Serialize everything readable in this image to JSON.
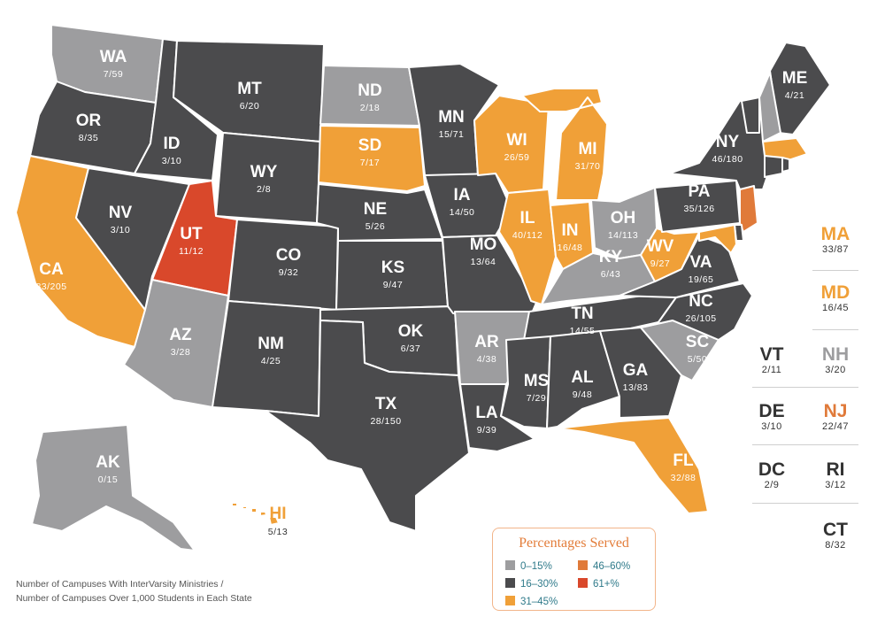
{
  "colors": {
    "light_gray": "#9d9d9f",
    "dark_gray": "#4b4b4d",
    "orange": "#f0a038",
    "red": "#d9482b",
    "text_dark": "#333333",
    "legend_text": "#2f7a8a",
    "legend_title": "#e37d3a"
  },
  "states": {
    "WA": {
      "abbr": "WA",
      "value": "7/59",
      "band": "0–15%"
    },
    "OR": {
      "abbr": "OR",
      "value": "8/35",
      "band": "16–30%"
    },
    "CA": {
      "abbr": "CA",
      "value": "83/205",
      "band": "31–45%"
    },
    "ID": {
      "abbr": "ID",
      "value": "3/10",
      "band": "16–30%"
    },
    "NV": {
      "abbr": "NV",
      "value": "3/10",
      "band": "16–30%"
    },
    "MT": {
      "abbr": "MT",
      "value": "6/20",
      "band": "16–30%"
    },
    "WY": {
      "abbr": "WY",
      "value": "2/8",
      "band": "16–30%"
    },
    "UT": {
      "abbr": "UT",
      "value": "11/12",
      "band": "61+%"
    },
    "AZ": {
      "abbr": "AZ",
      "value": "3/28",
      "band": "0–15%"
    },
    "CO": {
      "abbr": "CO",
      "value": "9/32",
      "band": "16–30%"
    },
    "NM": {
      "abbr": "NM",
      "value": "4/25",
      "band": "16–30%"
    },
    "ND": {
      "abbr": "ND",
      "value": "2/18",
      "band": "0–15%"
    },
    "SD": {
      "abbr": "SD",
      "value": "7/17",
      "band": "31–45%"
    },
    "NE": {
      "abbr": "NE",
      "value": "5/26",
      "band": "16–30%"
    },
    "KS": {
      "abbr": "KS",
      "value": "9/47",
      "band": "16–30%"
    },
    "OK": {
      "abbr": "OK",
      "value": "6/37",
      "band": "16–30%"
    },
    "TX": {
      "abbr": "TX",
      "value": "28/150",
      "band": "16–30%"
    },
    "MN": {
      "abbr": "MN",
      "value": "15/71",
      "band": "16–30%"
    },
    "IA": {
      "abbr": "IA",
      "value": "14/50",
      "band": "16–30%"
    },
    "MO": {
      "abbr": "MO",
      "value": "13/64",
      "band": "16–30%"
    },
    "AR": {
      "abbr": "AR",
      "value": "4/38",
      "band": "0–15%"
    },
    "LA": {
      "abbr": "LA",
      "value": "9/39",
      "band": "16–30%"
    },
    "WI": {
      "abbr": "WI",
      "value": "26/59",
      "band": "31–45%"
    },
    "IL": {
      "abbr": "IL",
      "value": "40/112",
      "band": "31–45%"
    },
    "MI": {
      "abbr": "MI",
      "value": "31/70",
      "band": "31–45%"
    },
    "IN": {
      "abbr": "IN",
      "value": "16/48",
      "band": "31–45%"
    },
    "OH": {
      "abbr": "OH",
      "value": "14/113",
      "band": "0–15%"
    },
    "KY": {
      "abbr": "KY",
      "value": "6/43",
      "band": "0–15%"
    },
    "TN": {
      "abbr": "TN",
      "value": "14/55",
      "band": "16–30%"
    },
    "MS": {
      "abbr": "MS",
      "value": "7/29",
      "band": "16–30%"
    },
    "AL": {
      "abbr": "AL",
      "value": "9/48",
      "band": "16–30%"
    },
    "GA": {
      "abbr": "GA",
      "value": "13/83",
      "band": "16–30%"
    },
    "FL": {
      "abbr": "FL",
      "value": "32/88",
      "band": "31–45%"
    },
    "SC": {
      "abbr": "SC",
      "value": "5/50",
      "band": "0–15%"
    },
    "NC": {
      "abbr": "NC",
      "value": "26/105",
      "band": "16–30%"
    },
    "VA": {
      "abbr": "VA",
      "value": "19/65",
      "band": "16–30%"
    },
    "WV": {
      "abbr": "WV",
      "value": "9/27",
      "band": "31–45%"
    },
    "PA": {
      "abbr": "PA",
      "value": "35/126",
      "band": "16–30%"
    },
    "NY": {
      "abbr": "NY",
      "value": "46/180",
      "band": "16–30%"
    },
    "ME": {
      "abbr": "ME",
      "value": "4/21",
      "band": "16–30%"
    },
    "AK": {
      "abbr": "AK",
      "value": "0/15",
      "band": "0–15%"
    },
    "HI": {
      "abbr": "HI",
      "value": "5/13",
      "band": "31–45%"
    },
    "MA": {
      "abbr": "MA",
      "value": "33/87",
      "band": "31–45%"
    },
    "MD": {
      "abbr": "MD",
      "value": "16/45",
      "band": "31–45%"
    },
    "VT": {
      "abbr": "VT",
      "value": "2/11",
      "band": "16–30%"
    },
    "NH": {
      "abbr": "NH",
      "value": "3/20",
      "band": "0–15%"
    },
    "DE": {
      "abbr": "DE",
      "value": "3/10",
      "band": "16–30%"
    },
    "NJ": {
      "abbr": "NJ",
      "value": "22/47",
      "band": "46–60%"
    },
    "DC": {
      "abbr": "DC",
      "value": "2/9",
      "band": "16–30%"
    },
    "RI": {
      "abbr": "RI",
      "value": "3/12",
      "band": "16–30%"
    },
    "CT": {
      "abbr": "CT",
      "value": "8/32",
      "band": "16–30%"
    }
  },
  "legend": {
    "title": "Percentages Served",
    "items": [
      {
        "label": "0–15%",
        "color": "#9d9d9f"
      },
      {
        "label": "16–30%",
        "color": "#4b4b4d"
      },
      {
        "label": "31–45%",
        "color": "#f0a038"
      },
      {
        "label": "46–60%",
        "color": "#e07a3a"
      },
      {
        "label": "61+%",
        "color": "#d9482b"
      }
    ]
  },
  "note": {
    "line1": "Number of Campuses With InterVarsity Ministries /",
    "line2": "Number of Campuses Over 1,000 Students in Each State"
  }
}
